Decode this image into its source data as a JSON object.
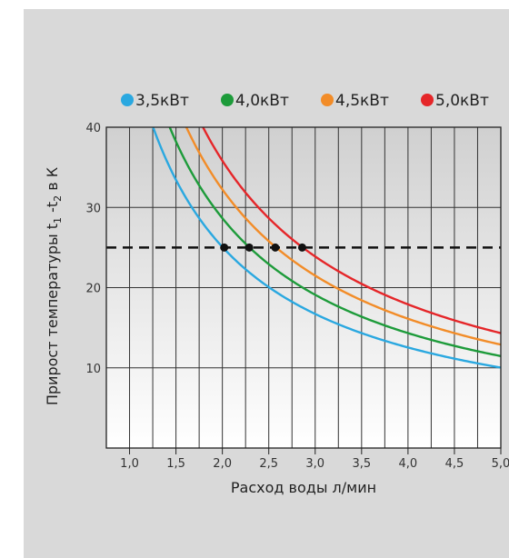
{
  "chart_data": {
    "type": "line",
    "xlabel": "Расход воды л/мин",
    "ylabel": {
      "base": "Прирост температуры t",
      "sub1": "1",
      "mid": " -t",
      "sub2": "2",
      "end": " в К"
    },
    "xlim": [
      0.75,
      5.0
    ],
    "ylim": [
      0,
      40
    ],
    "x_ticks": [
      "1,0",
      "1,5",
      "2,0",
      "2,5",
      "3,0",
      "3,5",
      "4,0",
      "4,5",
      "5,0"
    ],
    "x_tick_values": [
      1.0,
      1.5,
      2.0,
      2.5,
      3.0,
      3.5,
      4.0,
      4.5,
      5.0
    ],
    "y_ticks": [
      "10",
      "20",
      "30",
      "40"
    ],
    "y_tick_values": [
      10,
      20,
      30,
      40
    ],
    "grid": true,
    "legend_position": "top",
    "reference_line": {
      "y": 25,
      "style": "dashed"
    },
    "series": [
      {
        "name": "3,5кВт",
        "color": "#2aa8e0",
        "power_kw": 3.5,
        "marker": {
          "x": 2.02,
          "y": 25
        }
      },
      {
        "name": "4,0кВт",
        "color": "#1d9b3a",
        "power_kw": 4.0,
        "marker": {
          "x": 2.29,
          "y": 25
        }
      },
      {
        "name": "4,5кВт",
        "color": "#f28c28",
        "power_kw": 4.5,
        "marker": {
          "x": 2.57,
          "y": 25
        }
      },
      {
        "name": "5,0кВт",
        "color": "#e52629",
        "power_kw": 5.0,
        "marker": {
          "x": 2.86,
          "y": 25
        }
      }
    ]
  }
}
